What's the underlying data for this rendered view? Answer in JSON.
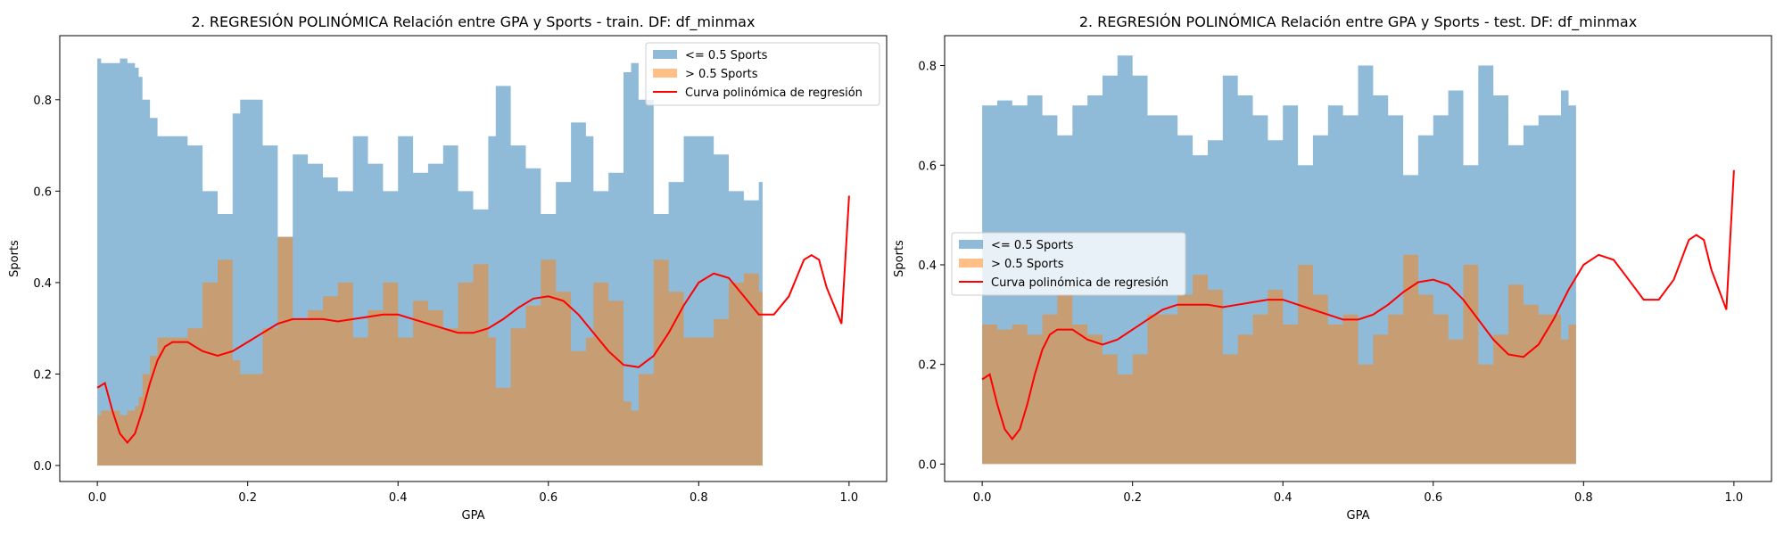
{
  "colors": {
    "low_area": "#1f77b4",
    "high_area": "#ff7f0e",
    "curve": "#ff0000",
    "area_alpha": 0.5
  },
  "chart_data": [
    {
      "type": "area",
      "title": "2. REGRESIÓN POLINÓMICA Relación entre GPA y Sports - train. DF: df_minmax",
      "xlabel": "GPA",
      "ylabel": "Sports",
      "xlim": [
        -0.05,
        1.05
      ],
      "ylim": [
        -0.035,
        0.94
      ],
      "xticks": [
        "0.0",
        "0.2",
        "0.4",
        "0.6",
        "0.8",
        "1.0"
      ],
      "yticks": [
        "0.0",
        "0.2",
        "0.4",
        "0.6",
        "0.8"
      ],
      "grid": false,
      "legend_position": "upper right",
      "legend": [
        "<= 0.5 Sports",
        "> 0.5 Sports",
        "Curva polinómica de regresión"
      ],
      "series": [
        {
          "name": "<= 0.5 Sports",
          "kind": "area",
          "x": [
            0.0,
            0.005,
            0.01,
            0.02,
            0.03,
            0.04,
            0.05,
            0.055,
            0.06,
            0.07,
            0.08,
            0.09,
            0.1,
            0.12,
            0.14,
            0.16,
            0.18,
            0.19,
            0.2,
            0.22,
            0.24,
            0.26,
            0.28,
            0.3,
            0.32,
            0.34,
            0.36,
            0.38,
            0.4,
            0.42,
            0.44,
            0.46,
            0.48,
            0.5,
            0.52,
            0.53,
            0.55,
            0.57,
            0.59,
            0.61,
            0.63,
            0.65,
            0.66,
            0.68,
            0.7,
            0.71,
            0.72,
            0.74,
            0.76,
            0.78,
            0.8,
            0.82,
            0.84,
            0.86,
            0.88,
            0.885
          ],
          "y": [
            0.89,
            0.88,
            0.88,
            0.88,
            0.89,
            0.88,
            0.87,
            0.85,
            0.8,
            0.76,
            0.72,
            0.72,
            0.72,
            0.7,
            0.6,
            0.55,
            0.77,
            0.8,
            0.8,
            0.7,
            0.5,
            0.68,
            0.66,
            0.63,
            0.6,
            0.72,
            0.66,
            0.6,
            0.72,
            0.64,
            0.66,
            0.7,
            0.6,
            0.56,
            0.72,
            0.83,
            0.7,
            0.65,
            0.55,
            0.62,
            0.75,
            0.72,
            0.6,
            0.64,
            0.86,
            0.88,
            0.8,
            0.55,
            0.62,
            0.72,
            0.72,
            0.68,
            0.6,
            0.58,
            0.62,
            0.62
          ]
        },
        {
          "name": "> 0.5 Sports",
          "kind": "area",
          "x": [
            0.0,
            0.005,
            0.01,
            0.02,
            0.03,
            0.04,
            0.05,
            0.055,
            0.06,
            0.07,
            0.08,
            0.09,
            0.1,
            0.12,
            0.14,
            0.16,
            0.18,
            0.19,
            0.2,
            0.22,
            0.24,
            0.26,
            0.28,
            0.3,
            0.32,
            0.34,
            0.36,
            0.38,
            0.4,
            0.42,
            0.44,
            0.46,
            0.48,
            0.5,
            0.52,
            0.53,
            0.55,
            0.57,
            0.59,
            0.61,
            0.63,
            0.65,
            0.66,
            0.68,
            0.7,
            0.71,
            0.72,
            0.74,
            0.76,
            0.78,
            0.8,
            0.82,
            0.84,
            0.86,
            0.88,
            0.885
          ],
          "y": [
            0.11,
            0.12,
            0.12,
            0.12,
            0.11,
            0.12,
            0.13,
            0.15,
            0.2,
            0.24,
            0.28,
            0.28,
            0.28,
            0.3,
            0.4,
            0.45,
            0.23,
            0.2,
            0.2,
            0.3,
            0.5,
            0.32,
            0.34,
            0.37,
            0.4,
            0.28,
            0.34,
            0.4,
            0.28,
            0.36,
            0.34,
            0.3,
            0.4,
            0.44,
            0.28,
            0.17,
            0.3,
            0.35,
            0.45,
            0.38,
            0.25,
            0.28,
            0.4,
            0.36,
            0.14,
            0.12,
            0.2,
            0.45,
            0.38,
            0.28,
            0.28,
            0.32,
            0.4,
            0.42,
            0.38,
            0.38
          ]
        },
        {
          "name": "Curva polinómica de regresión",
          "kind": "line",
          "x": [
            0.0,
            0.01,
            0.02,
            0.03,
            0.04,
            0.05,
            0.06,
            0.07,
            0.08,
            0.09,
            0.1,
            0.12,
            0.14,
            0.16,
            0.18,
            0.2,
            0.22,
            0.24,
            0.26,
            0.28,
            0.3,
            0.32,
            0.34,
            0.36,
            0.38,
            0.4,
            0.42,
            0.44,
            0.46,
            0.48,
            0.5,
            0.52,
            0.54,
            0.56,
            0.58,
            0.6,
            0.62,
            0.64,
            0.66,
            0.68,
            0.7,
            0.72,
            0.74,
            0.76,
            0.78,
            0.8,
            0.82,
            0.84,
            0.86,
            0.88,
            0.9,
            0.92,
            0.94,
            0.95,
            0.96,
            0.97,
            0.98,
            0.99,
            1.0
          ],
          "y": [
            0.17,
            0.18,
            0.12,
            0.07,
            0.05,
            0.07,
            0.12,
            0.18,
            0.23,
            0.26,
            0.27,
            0.27,
            0.25,
            0.24,
            0.25,
            0.27,
            0.29,
            0.31,
            0.32,
            0.32,
            0.32,
            0.315,
            0.32,
            0.325,
            0.33,
            0.33,
            0.32,
            0.31,
            0.3,
            0.29,
            0.29,
            0.3,
            0.32,
            0.345,
            0.365,
            0.37,
            0.36,
            0.33,
            0.29,
            0.25,
            0.22,
            0.215,
            0.24,
            0.29,
            0.35,
            0.4,
            0.42,
            0.41,
            0.37,
            0.33,
            0.33,
            0.37,
            0.45,
            0.46,
            0.45,
            0.39,
            0.35,
            0.31,
            0.59
          ]
        }
      ]
    },
    {
      "type": "area",
      "title": "2. REGRESIÓN POLINÓMICA Relación entre GPA y Sports - test. DF: df_minmax",
      "xlabel": "GPA",
      "ylabel": "Sports",
      "xlim": [
        -0.05,
        1.05
      ],
      "ylim": [
        -0.035,
        0.86
      ],
      "xticks": [
        "0.0",
        "0.2",
        "0.4",
        "0.6",
        "0.8",
        "1.0"
      ],
      "yticks": [
        "0.0",
        "0.2",
        "0.4",
        "0.6",
        "0.8"
      ],
      "grid": false,
      "legend_position": "center left",
      "legend": [
        "<= 0.5 Sports",
        "> 0.5 Sports",
        "Curva polinómica de regresión"
      ],
      "series": [
        {
          "name": "<= 0.5 Sports",
          "kind": "area",
          "x": [
            0.0,
            0.02,
            0.04,
            0.06,
            0.08,
            0.1,
            0.12,
            0.14,
            0.16,
            0.18,
            0.2,
            0.22,
            0.24,
            0.26,
            0.28,
            0.3,
            0.32,
            0.34,
            0.36,
            0.38,
            0.4,
            0.42,
            0.44,
            0.46,
            0.48,
            0.5,
            0.52,
            0.54,
            0.56,
            0.58,
            0.6,
            0.62,
            0.64,
            0.66,
            0.68,
            0.7,
            0.72,
            0.74,
            0.76,
            0.77,
            0.78,
            0.79
          ],
          "y": [
            0.72,
            0.73,
            0.72,
            0.74,
            0.7,
            0.66,
            0.72,
            0.74,
            0.78,
            0.82,
            0.78,
            0.7,
            0.7,
            0.66,
            0.62,
            0.65,
            0.78,
            0.74,
            0.7,
            0.65,
            0.72,
            0.6,
            0.66,
            0.72,
            0.7,
            0.8,
            0.74,
            0.7,
            0.58,
            0.66,
            0.7,
            0.75,
            0.6,
            0.8,
            0.74,
            0.64,
            0.68,
            0.7,
            0.7,
            0.75,
            0.72,
            0.7
          ]
        },
        {
          "name": "> 0.5 Sports",
          "kind": "area",
          "x": [
            0.0,
            0.02,
            0.04,
            0.06,
            0.08,
            0.1,
            0.12,
            0.14,
            0.16,
            0.18,
            0.2,
            0.22,
            0.24,
            0.26,
            0.28,
            0.3,
            0.32,
            0.34,
            0.36,
            0.38,
            0.4,
            0.42,
            0.44,
            0.46,
            0.48,
            0.5,
            0.52,
            0.54,
            0.56,
            0.58,
            0.6,
            0.62,
            0.64,
            0.66,
            0.68,
            0.7,
            0.72,
            0.74,
            0.76,
            0.77,
            0.78,
            0.79
          ],
          "y": [
            0.28,
            0.27,
            0.28,
            0.26,
            0.3,
            0.34,
            0.28,
            0.26,
            0.22,
            0.18,
            0.22,
            0.3,
            0.3,
            0.34,
            0.38,
            0.35,
            0.22,
            0.26,
            0.3,
            0.35,
            0.28,
            0.4,
            0.34,
            0.28,
            0.3,
            0.2,
            0.26,
            0.3,
            0.42,
            0.34,
            0.3,
            0.25,
            0.4,
            0.2,
            0.26,
            0.36,
            0.32,
            0.3,
            0.3,
            0.25,
            0.28,
            0.3
          ]
        },
        {
          "name": "Curva polinómica de regresión",
          "kind": "line",
          "x": [
            0.0,
            0.01,
            0.02,
            0.03,
            0.04,
            0.05,
            0.06,
            0.07,
            0.08,
            0.09,
            0.1,
            0.12,
            0.14,
            0.16,
            0.18,
            0.2,
            0.22,
            0.24,
            0.26,
            0.28,
            0.3,
            0.32,
            0.34,
            0.36,
            0.38,
            0.4,
            0.42,
            0.44,
            0.46,
            0.48,
            0.5,
            0.52,
            0.54,
            0.56,
            0.58,
            0.6,
            0.62,
            0.64,
            0.66,
            0.68,
            0.7,
            0.72,
            0.74,
            0.76,
            0.78,
            0.8,
            0.82,
            0.84,
            0.86,
            0.88,
            0.9,
            0.92,
            0.94,
            0.95,
            0.96,
            0.97,
            0.98,
            0.99,
            1.0
          ],
          "y": [
            0.17,
            0.18,
            0.12,
            0.07,
            0.05,
            0.07,
            0.12,
            0.18,
            0.23,
            0.26,
            0.27,
            0.27,
            0.25,
            0.24,
            0.25,
            0.27,
            0.29,
            0.31,
            0.32,
            0.32,
            0.32,
            0.315,
            0.32,
            0.325,
            0.33,
            0.33,
            0.32,
            0.31,
            0.3,
            0.29,
            0.29,
            0.3,
            0.32,
            0.345,
            0.365,
            0.37,
            0.36,
            0.33,
            0.29,
            0.25,
            0.22,
            0.215,
            0.24,
            0.29,
            0.35,
            0.4,
            0.42,
            0.41,
            0.37,
            0.33,
            0.33,
            0.37,
            0.45,
            0.46,
            0.45,
            0.39,
            0.35,
            0.31,
            0.59
          ]
        }
      ]
    }
  ]
}
